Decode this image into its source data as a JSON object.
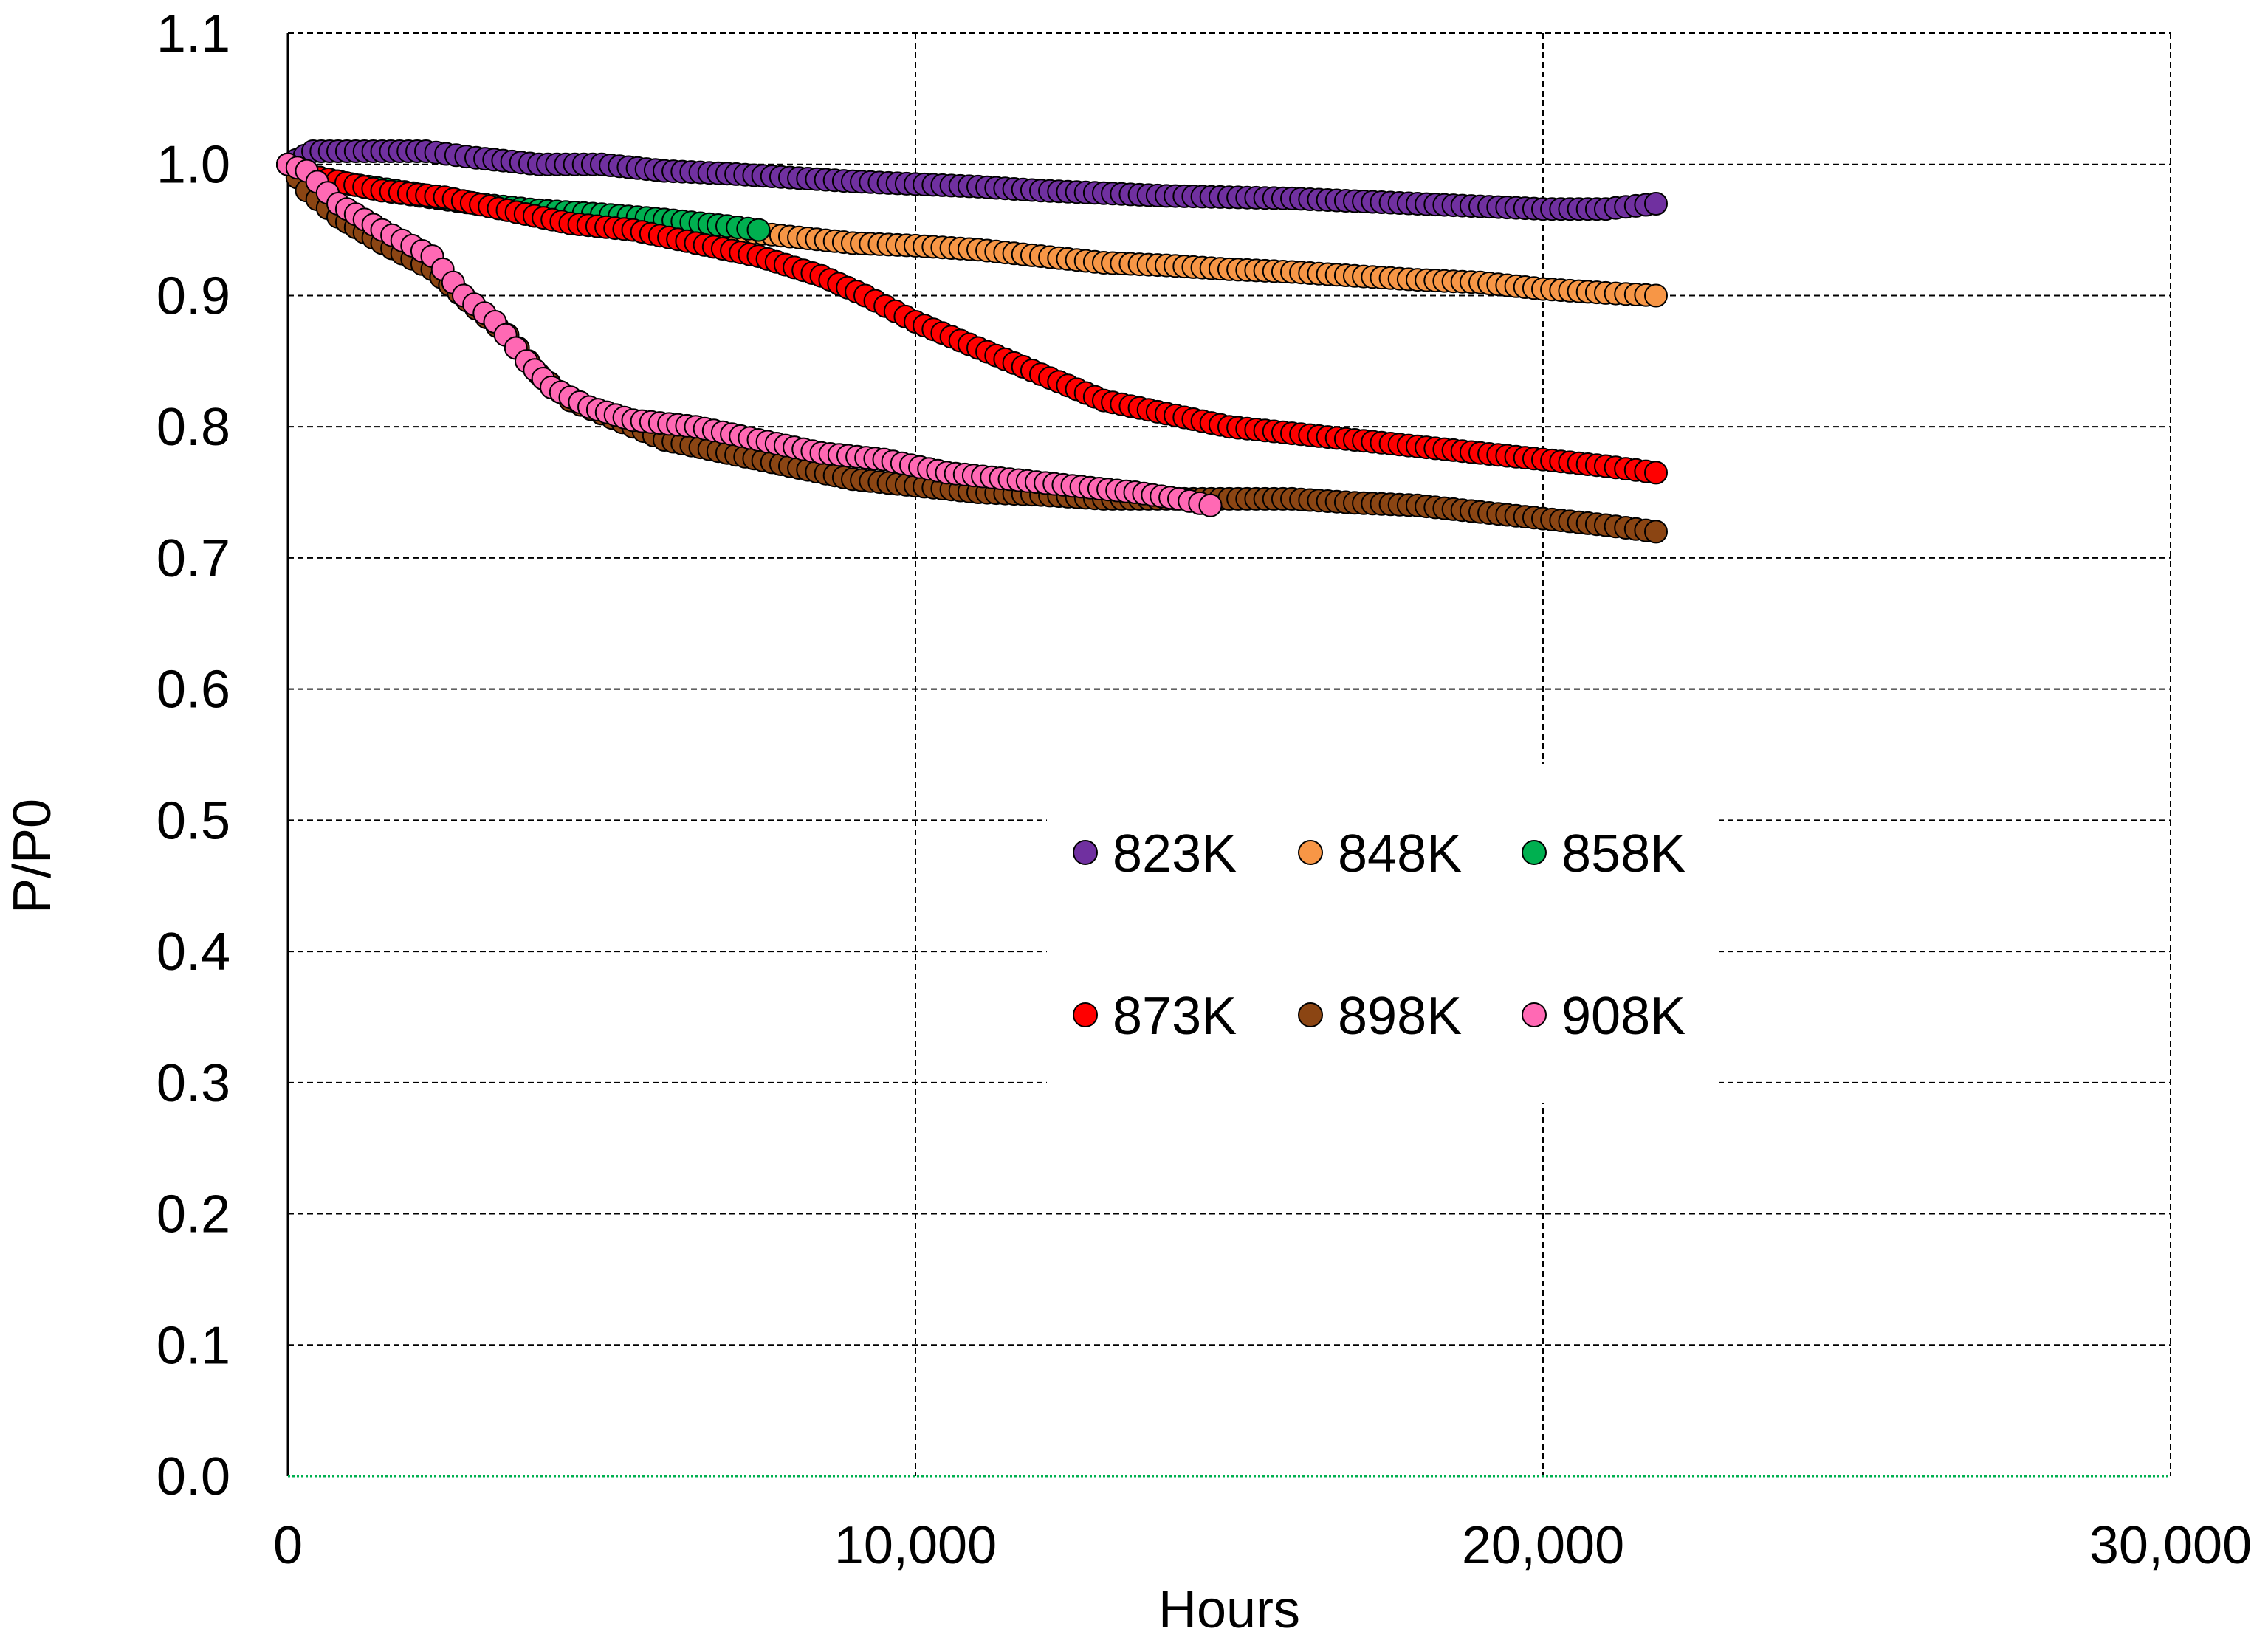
{
  "chart_data": {
    "type": "scatter",
    "title": "",
    "xlabel": "Hours",
    "ylabel": "P/P0",
    "xlim": [
      0,
      30000
    ],
    "ylim": [
      0.0,
      1.1
    ],
    "x_ticks": [
      {
        "value": 0,
        "label": "0"
      },
      {
        "value": 10000,
        "label": "10,000"
      },
      {
        "value": 20000,
        "label": "20,000"
      },
      {
        "value": 30000,
        "label": "30,000"
      }
    ],
    "y_ticks": [
      {
        "value": 0.0,
        "label": "0.0"
      },
      {
        "value": 0.1,
        "label": "0.1"
      },
      {
        "value": 0.2,
        "label": "0.2"
      },
      {
        "value": 0.3,
        "label": "0.3"
      },
      {
        "value": 0.4,
        "label": "0.4"
      },
      {
        "value": 0.5,
        "label": "0.5"
      },
      {
        "value": 0.6,
        "label": "0.6"
      },
      {
        "value": 0.7,
        "label": "0.7"
      },
      {
        "value": 0.8,
        "label": "0.8"
      },
      {
        "value": 0.9,
        "label": "0.9"
      },
      {
        "value": 1.0,
        "label": "1.0"
      },
      {
        "value": 1.1,
        "label": "1.1"
      }
    ],
    "grid": true,
    "legend_position": "center-right",
    "series": [
      {
        "name": "823K",
        "color": "#7030a0",
        "points": [
          [
            0,
            1.0
          ],
          [
            400,
            1.01
          ],
          [
            800,
            1.01
          ],
          [
            1500,
            1.01
          ],
          [
            2200,
            1.01
          ],
          [
            3000,
            1.005
          ],
          [
            4000,
            1.0
          ],
          [
            5000,
            1.0
          ],
          [
            6000,
            0.995
          ],
          [
            7000,
            0.993
          ],
          [
            8000,
            0.99
          ],
          [
            9000,
            0.987
          ],
          [
            10000,
            0.985
          ],
          [
            11000,
            0.983
          ],
          [
            12000,
            0.98
          ],
          [
            13000,
            0.978
          ],
          [
            14000,
            0.976
          ],
          [
            15000,
            0.975
          ],
          [
            16000,
            0.974
          ],
          [
            17000,
            0.972
          ],
          [
            18000,
            0.97
          ],
          [
            19000,
            0.968
          ],
          [
            20000,
            0.966
          ],
          [
            21000,
            0.966
          ],
          [
            21800,
            0.97
          ]
        ]
      },
      {
        "name": "848K",
        "color": "#f79646",
        "points": [
          [
            0,
            1.0
          ],
          [
            500,
            0.99
          ],
          [
            1500,
            0.98
          ],
          [
            3000,
            0.97
          ],
          [
            4500,
            0.96
          ],
          [
            6000,
            0.955
          ],
          [
            7000,
            0.95
          ],
          [
            8000,
            0.945
          ],
          [
            9000,
            0.94
          ],
          [
            10000,
            0.938
          ],
          [
            11000,
            0.935
          ],
          [
            12000,
            0.93
          ],
          [
            13000,
            0.925
          ],
          [
            14000,
            0.923
          ],
          [
            15000,
            0.92
          ],
          [
            16000,
            0.918
          ],
          [
            17000,
            0.915
          ],
          [
            18000,
            0.912
          ],
          [
            19000,
            0.91
          ],
          [
            20000,
            0.905
          ],
          [
            21000,
            0.902
          ],
          [
            21800,
            0.9
          ]
        ]
      },
      {
        "name": "858K",
        "color": "#00b050",
        "points": [
          [
            0,
            1.0
          ],
          [
            500,
            0.99
          ],
          [
            1000,
            0.985
          ],
          [
            2000,
            0.978
          ],
          [
            3000,
            0.97
          ],
          [
            4000,
            0.965
          ],
          [
            5000,
            0.962
          ],
          [
            6000,
            0.958
          ],
          [
            7000,
            0.953
          ],
          [
            7500,
            0.95
          ]
        ]
      },
      {
        "name": "873K",
        "color": "#ff0000",
        "points": [
          [
            0,
            1.0
          ],
          [
            500,
            0.99
          ],
          [
            1500,
            0.98
          ],
          [
            2500,
            0.975
          ],
          [
            3500,
            0.965
          ],
          [
            4500,
            0.955
          ],
          [
            5500,
            0.95
          ],
          [
            6500,
            0.94
          ],
          [
            7500,
            0.93
          ],
          [
            8500,
            0.915
          ],
          [
            9200,
            0.9
          ],
          [
            10000,
            0.88
          ],
          [
            11000,
            0.86
          ],
          [
            12000,
            0.84
          ],
          [
            13000,
            0.82
          ],
          [
            14000,
            0.81
          ],
          [
            15000,
            0.8
          ],
          [
            16000,
            0.795
          ],
          [
            17000,
            0.79
          ],
          [
            18000,
            0.785
          ],
          [
            19000,
            0.78
          ],
          [
            20000,
            0.775
          ],
          [
            21000,
            0.77
          ],
          [
            21800,
            0.765
          ]
        ]
      },
      {
        "name": "898K",
        "color": "#8b4513",
        "points": [
          [
            0,
            1.0
          ],
          [
            300,
            0.98
          ],
          [
            800,
            0.96
          ],
          [
            1500,
            0.94
          ],
          [
            2300,
            0.92
          ],
          [
            3000,
            0.89
          ],
          [
            3500,
            0.87
          ],
          [
            4000,
            0.84
          ],
          [
            4500,
            0.82
          ],
          [
            5000,
            0.81
          ],
          [
            5500,
            0.8
          ],
          [
            6000,
            0.79
          ],
          [
            7000,
            0.78
          ],
          [
            8000,
            0.77
          ],
          [
            9000,
            0.76
          ],
          [
            10000,
            0.755
          ],
          [
            11000,
            0.75
          ],
          [
            12000,
            0.748
          ],
          [
            13000,
            0.745
          ],
          [
            14000,
            0.745
          ],
          [
            15000,
            0.745
          ],
          [
            16000,
            0.745
          ],
          [
            17000,
            0.742
          ],
          [
            18000,
            0.74
          ],
          [
            19000,
            0.735
          ],
          [
            20000,
            0.73
          ],
          [
            21000,
            0.725
          ],
          [
            21800,
            0.72
          ]
        ]
      },
      {
        "name": "908K",
        "color": "#ff69b4",
        "points": [
          [
            0,
            1.0
          ],
          [
            300,
            0.995
          ],
          [
            800,
            0.97
          ],
          [
            1500,
            0.95
          ],
          [
            2300,
            0.93
          ],
          [
            2800,
            0.9
          ],
          [
            3300,
            0.88
          ],
          [
            3800,
            0.85
          ],
          [
            4200,
            0.83
          ],
          [
            4800,
            0.815
          ],
          [
            5500,
            0.805
          ],
          [
            6500,
            0.8
          ],
          [
            7500,
            0.79
          ],
          [
            8500,
            0.78
          ],
          [
            9500,
            0.775
          ],
          [
            10500,
            0.765
          ],
          [
            11500,
            0.76
          ],
          [
            12500,
            0.755
          ],
          [
            13500,
            0.75
          ],
          [
            14200,
            0.745
          ],
          [
            14700,
            0.74
          ]
        ]
      }
    ]
  }
}
